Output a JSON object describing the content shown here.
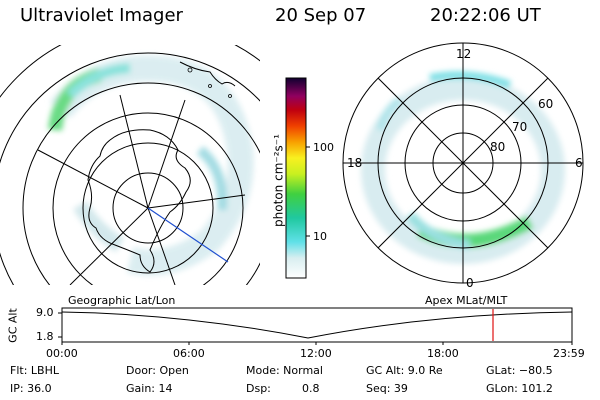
{
  "header": {
    "instrument": "Ultraviolet Imager",
    "date": "20 Sep 07",
    "time": "20:22:06 UT"
  },
  "colorbar": {
    "unit_label": "photon cm⁻²s⁻¹",
    "scale": "log",
    "ticks": [
      "100",
      "10"
    ]
  },
  "polar_plot": {
    "mlt_labels": {
      "top": "12",
      "left": "18",
      "right": "6",
      "bottom": "0"
    },
    "lat_labels": [
      "60",
      "70",
      "80"
    ]
  },
  "map_labels": {
    "geographic": "Geographic Lat/Lon",
    "apex": "Apex MLat/MLT"
  },
  "altitude_plot": {
    "ylabel": "GC Alt",
    "y_ticks": [
      "9.0",
      "1.8"
    ],
    "x_ticks": [
      "00:00",
      "06:00",
      "12:00",
      "18:00",
      "23:59"
    ]
  },
  "info": {
    "row1": {
      "filter": "Flt: LBHL",
      "door": "Door: Open",
      "mode": "Mode: Normal",
      "gc_alt": "GC Alt: 9.0 Re",
      "glat": "GLat: −80.5"
    },
    "row2": {
      "ip": "IP: 36.0",
      "gain": "Gain: 14",
      "dsp_label": "Dsp:",
      "dsp_value": "0.8",
      "seq": "Seq: 39",
      "glon": "GLon: 101.2"
    }
  },
  "colors": {
    "marker": "#e01010",
    "meridian": "#2050d0"
  }
}
